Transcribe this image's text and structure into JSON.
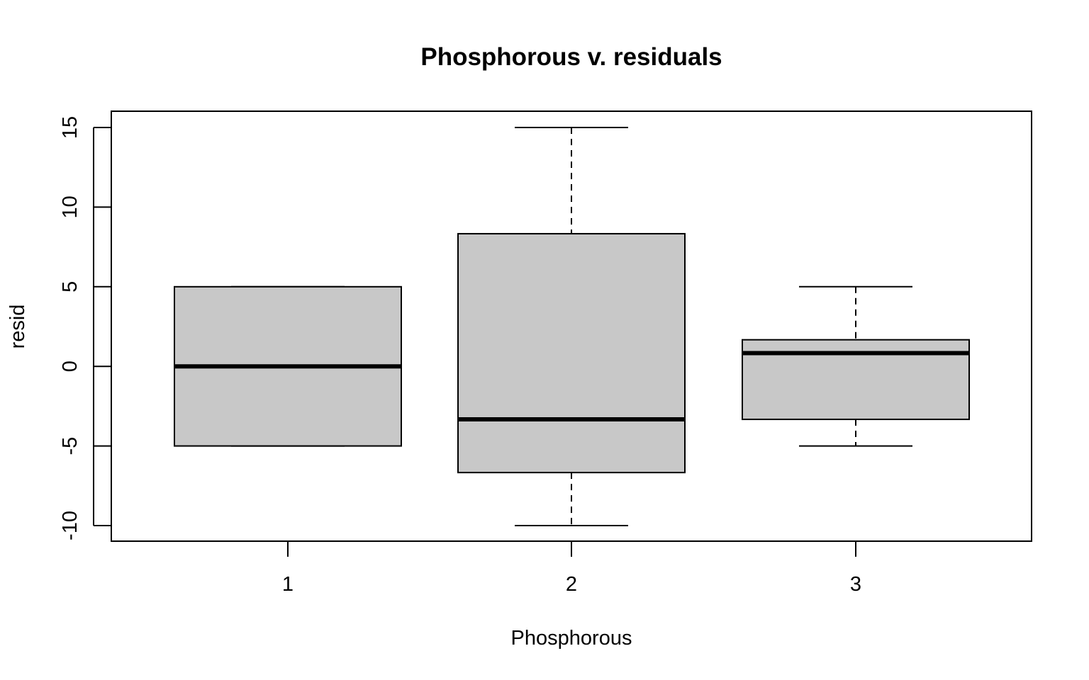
{
  "chart_data": {
    "type": "boxplot",
    "title": "Phosphorous v. residuals",
    "xlabel": "Phosphorous",
    "ylabel": "resid",
    "categories": [
      "1",
      "2",
      "3"
    ],
    "ylim": [
      -11,
      16
    ],
    "yticks": [
      -10,
      -5,
      0,
      5,
      10,
      15
    ],
    "ytick_labels": [
      "-10",
      "-5",
      "0",
      "5",
      "10",
      "15"
    ],
    "grid": false,
    "box_fill": "#c8c8c8",
    "line_color": "#000000",
    "boxes": [
      {
        "category": "1",
        "whisker_low": -5,
        "q1": -5,
        "median": 0,
        "q3": 5,
        "whisker_high": 5
      },
      {
        "category": "2",
        "whisker_low": -10,
        "q1": -6.67,
        "median": -3.33,
        "q3": 8.33,
        "whisker_high": 15
      },
      {
        "category": "3",
        "whisker_low": -5,
        "q1": -3.33,
        "median": 0.83,
        "q3": 1.67,
        "whisker_high": 5
      }
    ]
  }
}
